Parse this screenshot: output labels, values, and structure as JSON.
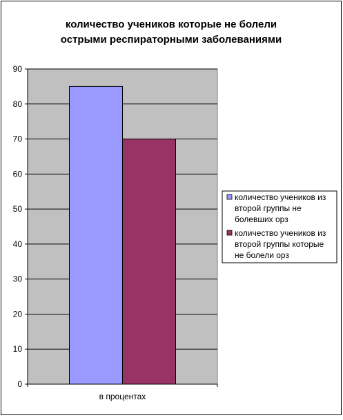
{
  "chart_data": {
    "type": "bar",
    "title_lines": [
      "количество учеников которые не болели",
      "острыми респираторными заболеваниями"
    ],
    "categories": [
      "в процентах"
    ],
    "series": [
      {
        "name_lines": [
          "количество учеников из",
          "второй группы не",
          "болевших орз"
        ],
        "values": [
          85
        ],
        "color": "#9999FF"
      },
      {
        "name_lines": [
          "количество учеников из",
          "второй группы  которые",
          "не болели орз"
        ],
        "values": [
          70
        ],
        "color": "#993366"
      }
    ],
    "ylim": [
      0,
      90
    ],
    "ytick_step": 10,
    "grid": true,
    "plot_background": "#C0C0C0",
    "legend_position": "right"
  }
}
